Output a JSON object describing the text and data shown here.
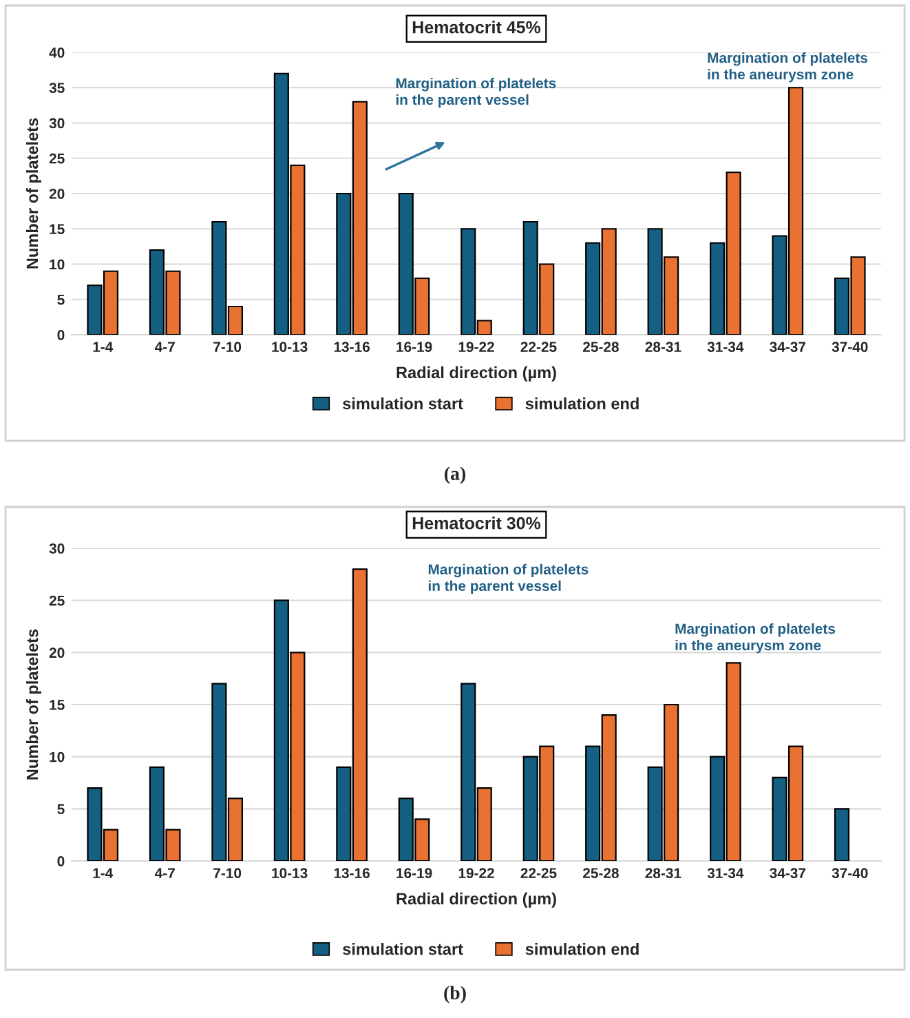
{
  "chart_data": [
    {
      "type": "bar",
      "title": "Hematocrit 45%",
      "xlabel": "Radial direction (µm)",
      "ylabel": "Number of platelets",
      "categories": [
        "1-4",
        "4-7",
        "7-10",
        "10-13",
        "13-16",
        "16-19",
        "19-22",
        "22-25",
        "25-28",
        "28-31",
        "31-34",
        "34-37",
        "37-40"
      ],
      "series": [
        {
          "name": "simulation start",
          "color": "#156082",
          "values": [
            7,
            12,
            16,
            37,
            20,
            20,
            15,
            16,
            13,
            15,
            13,
            14,
            8
          ]
        },
        {
          "name": "simulation end",
          "color": "#e97132",
          "values": [
            9,
            9,
            4,
            24,
            33,
            8,
            2,
            10,
            15,
            11,
            23,
            35,
            11
          ]
        }
      ],
      "ylim": [
        0,
        40
      ],
      "yticks": [
        0,
        5,
        10,
        15,
        20,
        25,
        30,
        35,
        40
      ],
      "grid": "y",
      "legend": "bottom",
      "annotations": [
        "Margination of platelets\nin the parent vessel",
        "Margination of platelets\nin the aneurysm zone",
        "(a)"
      ]
    },
    {
      "type": "bar",
      "title": "Hematocrit 30%",
      "xlabel": "Radial direction (µm)",
      "ylabel": "Number of platelets",
      "categories": [
        "1-4",
        "4-7",
        "7-10",
        "10-13",
        "13-16",
        "16-19",
        "19-22",
        "22-25",
        "25-28",
        "28-31",
        "31-34",
        "34-37",
        "37-40"
      ],
      "series": [
        {
          "name": "simulation start",
          "color": "#156082",
          "values": [
            7,
            9,
            17,
            25,
            9,
            6,
            17,
            10,
            11,
            9,
            10,
            8,
            5
          ]
        },
        {
          "name": "simulation end",
          "color": "#e97132",
          "values": [
            3,
            3,
            6,
            20,
            28,
            4,
            7,
            11,
            14,
            15,
            19,
            11,
            null
          ]
        }
      ],
      "ylim": [
        0,
        30
      ],
      "yticks": [
        0,
        5,
        10,
        15,
        20,
        25,
        30
      ],
      "grid": "y",
      "legend": "bottom",
      "annotations": [
        "Margination of platelets\nin the parent vessel",
        "Margination of platelets\nin the aneurysm zone",
        "(b)"
      ]
    }
  ]
}
